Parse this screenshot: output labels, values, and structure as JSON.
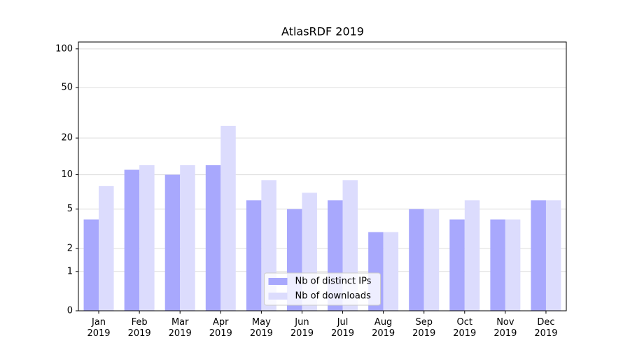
{
  "chart_data": {
    "type": "bar",
    "title": "AtlasRDF 2019",
    "scale": "log1p",
    "categories": [
      "Jan\n2019",
      "Feb\n2019",
      "Mar\n2019",
      "Apr\n2019",
      "May\n2019",
      "Jun\n2019",
      "Jul\n2019",
      "Aug\n2019",
      "Sep\n2019",
      "Oct\n2019",
      "Nov\n2019",
      "Dec\n2019"
    ],
    "series": [
      {
        "name": "Nb of distinct IPs",
        "color": "#a8a8fd",
        "values": [
          4,
          11,
          10,
          12,
          6,
          5,
          6,
          3,
          5,
          4,
          4,
          6
        ]
      },
      {
        "name": "Nb of downloads",
        "color": "#dcdcfd",
        "values": [
          8,
          12,
          12,
          25,
          9,
          7,
          9,
          3,
          5,
          6,
          4,
          6
        ]
      }
    ],
    "ylim": [
      0,
      113
    ],
    "yticks": [
      0,
      1,
      2,
      5,
      10,
      20,
      50,
      100
    ],
    "grid": true,
    "legend": "lower center"
  }
}
